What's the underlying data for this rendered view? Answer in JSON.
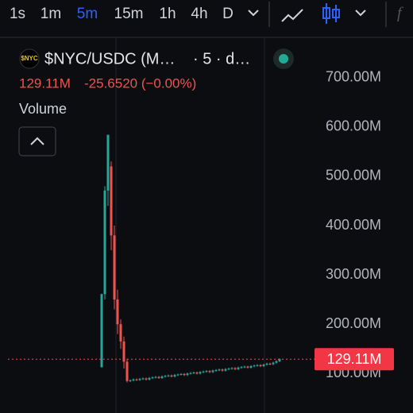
{
  "toolbar": {
    "intervals": [
      "1s",
      "1m",
      "5m",
      "15m",
      "1h",
      "4h",
      "D"
    ],
    "active": 2
  },
  "header": {
    "logo": "$NYC",
    "symbol": "$NYC/USDC (M…",
    "detail": "· 5 · d…",
    "price": "129.11M",
    "change": "-25.6520 (−0.00%)",
    "indicator": "Volume"
  },
  "chart_data": {
    "type": "candlestick",
    "up_color": "#26a69a",
    "down_color": "#ef5350",
    "open": [
      113,
      261,
      471,
      520,
      380,
      250,
      200,
      165,
      124,
      85,
      86,
      88,
      87,
      89,
      90,
      88,
      91,
      92,
      93,
      91,
      94,
      95,
      96,
      94,
      97,
      98,
      99,
      97,
      100,
      101,
      102,
      100,
      103,
      104,
      105,
      103,
      106,
      107,
      108,
      106,
      109,
      110,
      111,
      109,
      112,
      113,
      114,
      112,
      115,
      116,
      117,
      115,
      118,
      120,
      119,
      122,
      125
    ],
    "high": [
      262,
      480,
      584,
      530,
      400,
      270,
      210,
      175,
      130,
      88,
      90,
      90,
      91,
      92,
      92,
      93,
      94,
      95,
      95,
      96,
      97,
      98,
      98,
      99,
      100,
      101,
      101,
      102,
      103,
      104,
      104,
      105,
      106,
      107,
      107,
      108,
      109,
      110,
      110,
      111,
      112,
      113,
      113,
      114,
      115,
      116,
      116,
      117,
      118,
      119,
      119,
      120,
      122,
      122,
      124,
      127,
      131
    ],
    "low": [
      112,
      250,
      440,
      350,
      230,
      180,
      150,
      110,
      82,
      83,
      84,
      85,
      85,
      87,
      86,
      86,
      89,
      90,
      89,
      89,
      92,
      93,
      92,
      92,
      95,
      96,
      95,
      95,
      98,
      99,
      98,
      98,
      101,
      102,
      101,
      101,
      104,
      105,
      104,
      104,
      107,
      108,
      107,
      107,
      110,
      111,
      110,
      110,
      113,
      114,
      113,
      113,
      116,
      117,
      117,
      120,
      123
    ],
    "close": [
      261,
      471,
      584,
      380,
      250,
      200,
      165,
      124,
      85,
      86,
      88,
      87,
      89,
      90,
      88,
      91,
      92,
      93,
      91,
      94,
      95,
      96,
      94,
      97,
      98,
      99,
      97,
      100,
      101,
      102,
      100,
      103,
      104,
      105,
      103,
      106,
      107,
      108,
      106,
      109,
      110,
      111,
      109,
      112,
      113,
      114,
      112,
      115,
      116,
      117,
      115,
      118,
      120,
      119,
      122,
      125,
      129.11
    ],
    "ylim": [
      20,
      780
    ],
    "yticks": [
      {
        "value": 100,
        "label": "100.00M"
      },
      {
        "value": 200,
        "label": "200.00M"
      },
      {
        "value": 300,
        "label": "300.00M"
      },
      {
        "value": 400,
        "label": "400.00M"
      },
      {
        "value": 500,
        "label": "500.00M"
      },
      {
        "value": 600,
        "label": "600.00M"
      },
      {
        "value": 700,
        "label": "700.00M"
      }
    ],
    "price_tag": {
      "value": 129.11,
      "label": "129.11M"
    }
  }
}
